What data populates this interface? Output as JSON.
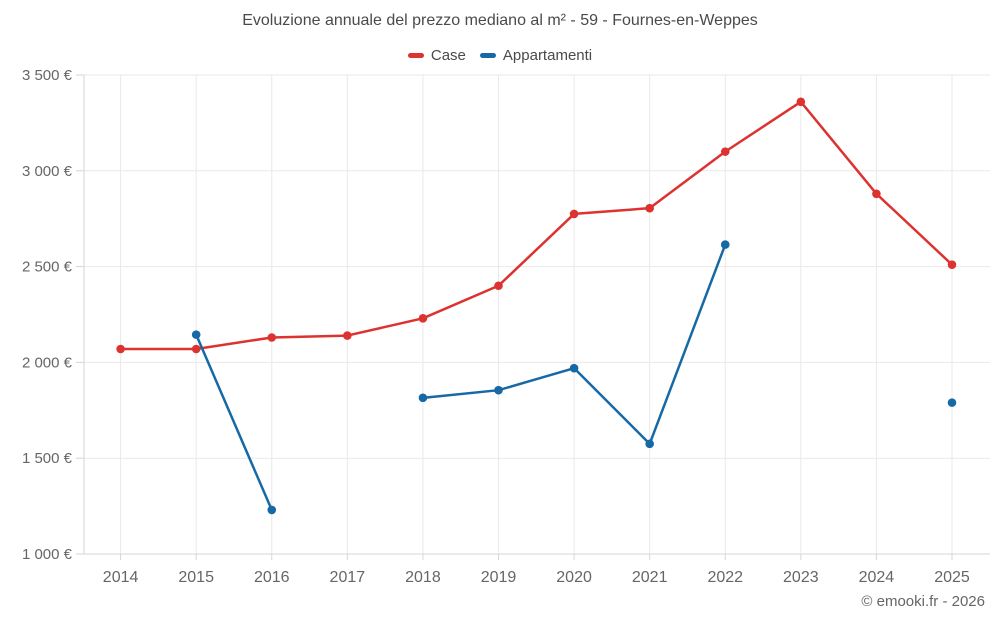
{
  "title": "Evoluzione annuale del prezzo mediano al m² - 59 - Fournes-en-Weppes",
  "footer": "© emooki.fr - 2026",
  "colors": {
    "case": "#dc3330",
    "appartamenti": "#1769a5",
    "gridline": "#e9e9e9",
    "axis_line": "#d6d6d6",
    "axis_text": "#666666",
    "title_text": "#4a4a4a"
  },
  "chart_data": {
    "type": "line",
    "title": "Evoluzione annuale del prezzo mediano al m² - 59 - Fournes-en-Weppes",
    "categories": [
      "2014",
      "2015",
      "2016",
      "2017",
      "2018",
      "2019",
      "2020",
      "2021",
      "2022",
      "2023",
      "2024",
      "2025"
    ],
    "series": [
      {
        "name": "Case",
        "color": "#dc3330",
        "values": [
          2070,
          2070,
          2130,
          2140,
          2230,
          2400,
          2775,
          2805,
          3100,
          3360,
          2880,
          2510
        ]
      },
      {
        "name": "Appartamenti",
        "color": "#1769a5",
        "values": [
          null,
          2145,
          1230,
          null,
          1815,
          1855,
          1970,
          1575,
          2615,
          null,
          null,
          1790
        ]
      }
    ],
    "ylim": [
      1000,
      3500
    ],
    "yticks": [
      {
        "value": 1000,
        "label": "1 000 €"
      },
      {
        "value": 1500,
        "label": "1 500 €"
      },
      {
        "value": 2000,
        "label": "2 000 €"
      },
      {
        "value": 2500,
        "label": "2 500 €"
      },
      {
        "value": 3000,
        "label": "3 000 €"
      },
      {
        "value": 3500,
        "label": "3 500 €"
      }
    ],
    "grid": true,
    "legend_position": "top",
    "unit": "€"
  }
}
